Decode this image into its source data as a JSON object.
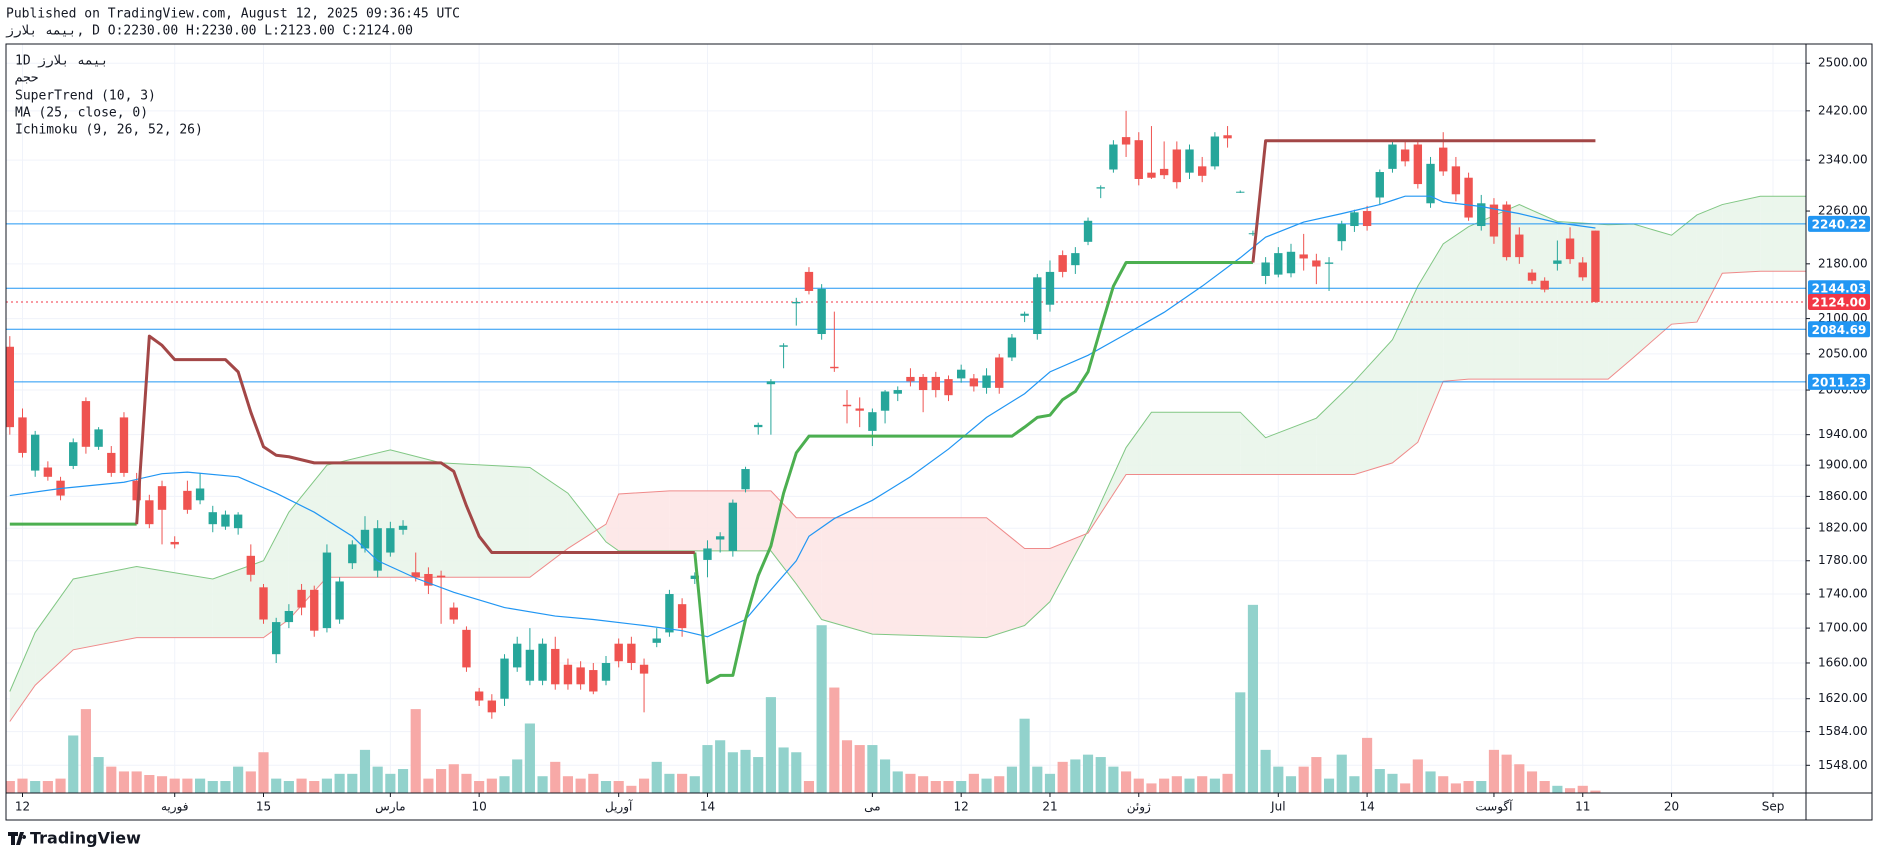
{
  "header": {
    "published": "Published on TradingView.com, August 12, 2025 09:36:45 UTC",
    "symbol_line": "بیمه بلارز, D O:2230.00 H:2230.00 L:2123.00 C:2124.00"
  },
  "legend": {
    "interval": "1D",
    "symbol": "بیمه بلارز"
  },
  "footer": {
    "logo": "TradingView"
  },
  "chart_data": {
    "type": "candlestick",
    "log_scale": true,
    "grid": true,
    "xlim": [
      -0.3,
      141.6
    ],
    "xticks": [
      {
        "value": 1,
        "label": "12"
      },
      {
        "value": 13,
        "label": "فوریه"
      },
      {
        "value": 20,
        "label": "15"
      },
      {
        "value": 30,
        "label": "مارس"
      },
      {
        "value": 37,
        "label": "10"
      },
      {
        "value": 48,
        "label": "آوریل"
      },
      {
        "value": 55,
        "label": "14"
      },
      {
        "value": 68,
        "label": "می"
      },
      {
        "value": 75,
        "label": "12"
      },
      {
        "value": 82,
        "label": "21"
      },
      {
        "value": 89,
        "label": "ژوئن"
      },
      {
        "value": 100,
        "label": "Jul"
      },
      {
        "value": 107,
        "label": "14"
      },
      {
        "value": 117,
        "label": "آگوست"
      },
      {
        "value": 124,
        "label": "11"
      },
      {
        "value": 131,
        "label": "20"
      },
      {
        "value": 139,
        "label": "Sep"
      }
    ],
    "ylim": [
      1519,
      2533
    ],
    "yticks": [
      {
        "value": 2500,
        "label": "2500.00"
      },
      {
        "value": 2420,
        "label": "2420.00"
      },
      {
        "value": 2340,
        "label": "2340.00"
      },
      {
        "value": 2260,
        "label": "2260.00"
      },
      {
        "value": 2180,
        "label": "2180.00"
      },
      {
        "value": 2100,
        "label": "2100.00"
      },
      {
        "value": 2050,
        "label": "2050.00"
      },
      {
        "value": 2000,
        "label": "2000.00"
      },
      {
        "value": 1940,
        "label": "1940.00"
      },
      {
        "value": 1900,
        "label": "1900.00"
      },
      {
        "value": 1860,
        "label": "1860.00"
      },
      {
        "value": 1820,
        "label": "1820.00"
      },
      {
        "value": 1780,
        "label": "1780.00"
      },
      {
        "value": 1740,
        "label": "1740.00"
      },
      {
        "value": 1700,
        "label": "1700.00"
      },
      {
        "value": 1660,
        "label": "1660.00"
      },
      {
        "value": 1620,
        "label": "1620.00"
      },
      {
        "value": 1584,
        "label": "1584.00"
      },
      {
        "value": 1548,
        "label": "1548.00"
      }
    ],
    "up_color": "#26a69a",
    "down_color": "#ef5350",
    "open": [
      2060,
      1963,
      1893,
      1897,
      1880,
      1899,
      1985,
      1924,
      1916,
      1963,
      1880,
      1855,
      1873,
      1803,
      1867,
      1855,
      1825,
      1822,
      1820,
      1786,
      1748,
      1670,
      1707,
      1745,
      1745,
      1700,
      1710,
      1777,
      1795,
      1768,
      1790,
      1818,
      1766,
      1764,
      1762,
      1724,
      1698,
      1628,
      1618,
      1620,
      1655,
      1640,
      1640,
      1676,
      1658,
      1655,
      1652,
      1640,
      1682,
      1682,
      1658,
      1683,
      1695,
      1728,
      1758,
      1781,
      1806,
      1792,
      1869,
      1950,
      2008,
      2060,
      2122,
      2168,
      2078,
      2032,
      1980,
      1975,
      1945,
      1972,
      1995,
      2018,
      2018,
      2018,
      2015,
      2016,
      2016,
      2003,
      2045,
      2045,
      2104,
      2078,
      2120,
      2193,
      2178,
      2213,
      2295,
      2325,
      2377,
      2372,
      2320,
      2326,
      2357,
      2320,
      2330,
      2330,
      2380,
      2290,
      2226,
      2162,
      2164,
      2166,
      2194,
      2185,
      2180,
      2214,
      2237,
      2260,
      2281,
      2326,
      2357,
      2365,
      2272,
      2360,
      2330,
      2312,
      2237,
      2270,
      2270,
      2224,
      2167,
      2155,
      2180,
      2218,
      2182,
      2230
    ],
    "high": [
      2075,
      1975,
      1945,
      1905,
      1885,
      1935,
      1990,
      1950,
      1925,
      1970,
      1890,
      1862,
      1880,
      1810,
      1880,
      1890,
      1848,
      1842,
      1840,
      1800,
      1752,
      1712,
      1728,
      1752,
      1750,
      1800,
      1760,
      1805,
      1835,
      1830,
      1828,
      1830,
      1790,
      1772,
      1768,
      1730,
      1702,
      1632,
      1625,
      1670,
      1690,
      1700,
      1688,
      1690,
      1665,
      1662,
      1660,
      1668,
      1688,
      1690,
      1665,
      1700,
      1745,
      1735,
      1766,
      1805,
      1815,
      1856,
      1898,
      1956,
      2015,
      2065,
      2130,
      2175,
      2150,
      2110,
      2000,
      1990,
      1975,
      2000,
      2005,
      2030,
      2022,
      2025,
      2020,
      2035,
      2022,
      2030,
      2050,
      2078,
      2110,
      2165,
      2185,
      2200,
      2205,
      2250,
      2300,
      2372,
      2420,
      2385,
      2395,
      2370,
      2370,
      2365,
      2345,
      2385,
      2395,
      2292,
      2230,
      2190,
      2205,
      2210,
      2225,
      2195,
      2190,
      2245,
      2262,
      2268,
      2325,
      2370,
      2370,
      2372,
      2345,
      2385,
      2345,
      2320,
      2285,
      2280,
      2275,
      2235,
      2172,
      2160,
      2215,
      2235,
      2190,
      2230
    ],
    "low": [
      1940,
      1910,
      1885,
      1880,
      1855,
      1895,
      1915,
      1920,
      1885,
      1885,
      1830,
      1820,
      1800,
      1795,
      1838,
      1850,
      1815,
      1818,
      1812,
      1755,
      1705,
      1660,
      1700,
      1715,
      1690,
      1695,
      1705,
      1770,
      1790,
      1760,
      1785,
      1812,
      1755,
      1740,
      1705,
      1705,
      1650,
      1612,
      1598,
      1612,
      1650,
      1635,
      1635,
      1630,
      1630,
      1630,
      1625,
      1635,
      1655,
      1652,
      1605,
      1678,
      1690,
      1690,
      1752,
      1760,
      1790,
      1785,
      1865,
      1940,
      1940,
      2030,
      2090,
      2135,
      2070,
      2025,
      1955,
      1950,
      1925,
      1955,
      1985,
      2005,
      1970,
      1990,
      1985,
      2010,
      1998,
      1995,
      1995,
      2040,
      2095,
      2070,
      2110,
      2160,
      2165,
      2208,
      2280,
      2320,
      2345,
      2300,
      2310,
      2310,
      2295,
      2310,
      2305,
      2325,
      2360,
      2288,
      2222,
      2150,
      2160,
      2160,
      2170,
      2150,
      2140,
      2200,
      2228,
      2230,
      2270,
      2320,
      2330,
      2295,
      2265,
      2315,
      2275,
      2245,
      2230,
      2210,
      2185,
      2180,
      2150,
      2138,
      2170,
      2180,
      2155,
      2123
    ],
    "close": [
      1950,
      1916,
      1940,
      1885,
      1861,
      1930,
      1924,
      1947,
      1890,
      1890,
      1855,
      1825,
      1843,
      1800,
      1843,
      1870,
      1840,
      1837,
      1837,
      1763,
      1710,
      1707,
      1720,
      1724,
      1697,
      1790,
      1755,
      1800,
      1818,
      1820,
      1820,
      1823,
      1760,
      1750,
      1760,
      1710,
      1655,
      1618,
      1605,
      1665,
      1682,
      1675,
      1682,
      1636,
      1636,
      1636,
      1628,
      1660,
      1662,
      1660,
      1648,
      1688,
      1740,
      1700,
      1762,
      1795,
      1810,
      1852,
      1895,
      1953,
      2012,
      2062,
      2124,
      2140,
      2143,
      2030,
      1978,
      1972,
      1970,
      1998,
      2000,
      2012,
      2000,
      2000,
      1993,
      2028,
      2005,
      2020,
      2003,
      2073,
      2107,
      2160,
      2168,
      2168,
      2196,
      2245,
      2297,
      2365,
      2365,
      2310,
      2312,
      2316,
      2305,
      2357,
      2315,
      2378,
      2375,
      2290,
      2226,
      2182,
      2196,
      2198,
      2188,
      2176,
      2182,
      2240,
      2258,
      2237,
      2321,
      2365,
      2338,
      2302,
      2334,
      2322,
      2286,
      2250,
      2272,
      2221,
      2190,
      2190,
      2155,
      2142,
      2185,
      2187,
      2160,
      2124
    ],
    "volume": {
      "name": "حجم",
      "ylim": [
        0,
        625
      ],
      "up_color": "#92d2cc",
      "down_color": "#f7a9a7",
      "values": [
        10,
        12,
        10,
        10,
        12,
        48,
        70,
        30,
        22,
        18,
        18,
        15,
        14,
        12,
        12,
        12,
        10,
        10,
        22,
        18,
        34,
        12,
        10,
        12,
        10,
        12,
        16,
        16,
        36,
        22,
        16,
        20,
        70,
        12,
        20,
        24,
        16,
        10,
        12,
        14,
        28,
        58,
        14,
        26,
        14,
        12,
        16,
        10,
        10,
        6,
        12,
        26,
        16,
        16,
        14,
        40,
        44,
        34,
        36,
        30,
        80,
        38,
        34,
        10,
        140,
        88,
        44,
        40,
        40,
        28,
        18,
        16,
        14,
        10,
        10,
        10,
        16,
        12,
        14,
        22,
        62,
        22,
        16,
        26,
        28,
        32,
        30,
        22,
        18,
        12,
        8,
        12,
        14,
        12,
        14,
        12,
        16,
        84,
        157,
        36,
        22,
        14,
        22,
        30,
        12,
        32,
        14,
        46,
        20,
        16,
        8,
        28,
        18,
        14,
        8,
        10,
        10,
        36,
        32,
        24,
        18,
        10,
        6,
        4,
        6,
        2
      ]
    },
    "supertrend": {
      "name": "SuperTrend (10, 3)",
      "series": [
        {
          "color": "#4caf50",
          "x": [
            0,
            10,
            null,
            54,
            55,
            56,
            57,
            58,
            59,
            60,
            61,
            62,
            63,
            79,
            80,
            81,
            82,
            83,
            84,
            85,
            86,
            87,
            88,
            98
          ],
          "values": [
            1825,
            1825,
            null,
            1790,
            1638,
            1646,
            1646,
            1710,
            1762,
            1798,
            1864,
            1916,
            1938,
            1938,
            1950,
            1963,
            1966,
            1987,
            1998,
            2025,
            2086,
            2147,
            2182,
            2182
          ]
        },
        {
          "color": "#a34747",
          "x": [
            10,
            11,
            12,
            13,
            17,
            18,
            19,
            20,
            21,
            22,
            24,
            27,
            34,
            35,
            36,
            37,
            38,
            54,
            null,
            98,
            99,
            125
          ],
          "values": [
            1825,
            2075,
            2062,
            2042,
            2042,
            2025,
            1970,
            1924,
            1913,
            1911,
            1903,
            1903,
            1903,
            1892,
            1848,
            1810,
            1790,
            1790,
            null,
            2182,
            2371,
            2371
          ]
        }
      ]
    },
    "ma": {
      "name": "MA (25, close, 0)",
      "color": "#2196f3",
      "x": [
        0,
        4,
        9,
        12,
        14,
        18,
        21,
        24,
        27,
        29,
        32,
        35,
        39,
        43,
        46,
        50,
        53,
        55,
        58,
        60,
        62,
        63,
        65,
        68,
        71,
        74,
        77,
        80,
        82,
        85,
        88,
        91,
        94,
        97,
        99,
        102,
        105,
        108,
        110,
        112,
        113,
        116,
        119,
        122,
        125
      ],
      "values": [
        1861,
        1870,
        1878,
        1889,
        1891,
        1885,
        1864,
        1840,
        1810,
        1780,
        1759,
        1742,
        1724,
        1714,
        1710,
        1703,
        1697,
        1690,
        1710,
        1745,
        1780,
        1810,
        1832,
        1855,
        1885,
        1921,
        1963,
        1995,
        2025,
        2048,
        2078,
        2109,
        2147,
        2189,
        2220,
        2243,
        2256,
        2270,
        2283,
        2283,
        2274,
        2267,
        2256,
        2242,
        2234
      ]
    },
    "ichimoku": {
      "name": "Ichimoku (9, 26, 52, 26)",
      "span_a_color": "#81c784",
      "span_b_color": "#ef8a8a",
      "up_fill": "#e8f5e9",
      "down_fill": "#fde4e4",
      "x": [
        0,
        2,
        5,
        10,
        16,
        20,
        22,
        25,
        30,
        34,
        41,
        44,
        47,
        48,
        52,
        60,
        62,
        64,
        68,
        77,
        80,
        82,
        85,
        88,
        90,
        97,
        99,
        103,
        106,
        109,
        111,
        113,
        115,
        119,
        122,
        126,
        128,
        131,
        133,
        135,
        138,
        142
      ],
      "span_a": [
        1628,
        1695,
        1758,
        1773,
        1758,
        1780,
        1840,
        1900,
        1920,
        1903,
        1897,
        1864,
        1803,
        1792,
        1792,
        1792,
        1752,
        1710,
        1693,
        1689,
        1703,
        1731,
        1817,
        1923,
        1970,
        1970,
        1936,
        1962,
        2012,
        2070,
        2147,
        2210,
        2236,
        2270,
        2244,
        2239,
        2240,
        2223,
        2254,
        2270,
        2283,
        2283
      ],
      "span_b": [
        1595,
        1635,
        1675,
        1689,
        1689,
        1689,
        1710,
        1760,
        1760,
        1760,
        1760,
        1795,
        1825,
        1863,
        1867,
        1867,
        1833,
        1833,
        1833,
        1833,
        1795,
        1795,
        1814,
        1888,
        1888,
        1888,
        1888,
        1888,
        1888,
        1903,
        1930,
        2012,
        2015,
        2015,
        2015,
        2015,
        2045,
        2092,
        2095,
        2166,
        2169,
        2169
      ]
    },
    "hlines": [
      {
        "value": 2240.22,
        "label": "2240.22",
        "color": "#2196f3"
      },
      {
        "value": 2144.03,
        "label": "2144.03",
        "color": "#2196f3"
      },
      {
        "value": 2084.69,
        "label": "2084.69",
        "color": "#2196f3"
      },
      {
        "value": 2011.23,
        "label": "2011.23",
        "color": "#2196f3"
      },
      {
        "value": 2124,
        "label": "2124.00",
        "color": "#f23645",
        "style": "dotted"
      }
    ]
  }
}
